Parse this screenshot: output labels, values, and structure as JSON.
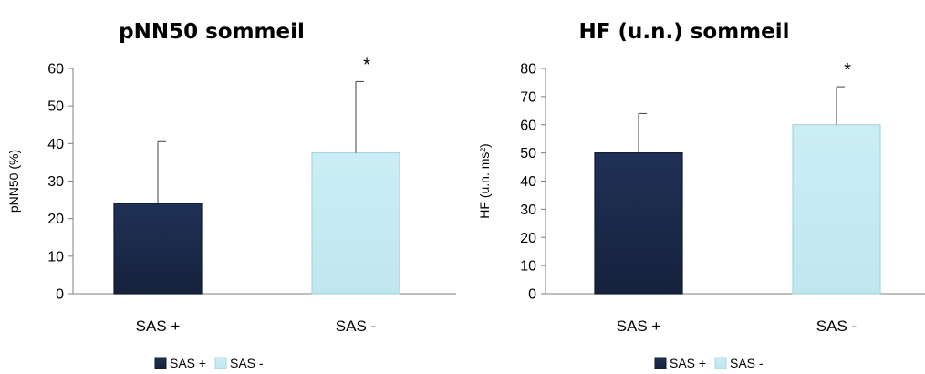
{
  "colors": {
    "sas_plus": "#1b2a4a",
    "sas_minus": "#c5ebf3",
    "axis": "#7f7f7f",
    "errorbar": "#404040"
  },
  "chart_data": [
    {
      "type": "bar",
      "title": "pNN50 sommeil",
      "ylabel": "pNN50 (%)",
      "xlabel": "",
      "categories": [
        "SAS +",
        "SAS -"
      ],
      "values": [
        24,
        37.5
      ],
      "error_upper": [
        40.5,
        56.5
      ],
      "significance": [
        "",
        "*"
      ],
      "ylim": [
        0,
        60
      ],
      "yticks": [
        0,
        10,
        20,
        30,
        40,
        50,
        60
      ],
      "grid": false,
      "legend": {
        "placement": "bottom",
        "entries": [
          "SAS +",
          "SAS -"
        ]
      }
    },
    {
      "type": "bar",
      "title": "HF (u.n.) sommeil",
      "ylabel": "HF (u.n. ms²)",
      "xlabel": "",
      "categories": [
        "SAS +",
        "SAS -"
      ],
      "values": [
        50,
        60
      ],
      "error_upper": [
        64,
        73.5
      ],
      "significance": [
        "",
        "*"
      ],
      "ylim": [
        0,
        80
      ],
      "yticks": [
        0,
        10,
        20,
        30,
        40,
        50,
        60,
        70,
        80
      ],
      "grid": false,
      "legend": {
        "placement": "bottom",
        "entries": [
          "SAS +",
          "SAS -"
        ]
      }
    }
  ]
}
